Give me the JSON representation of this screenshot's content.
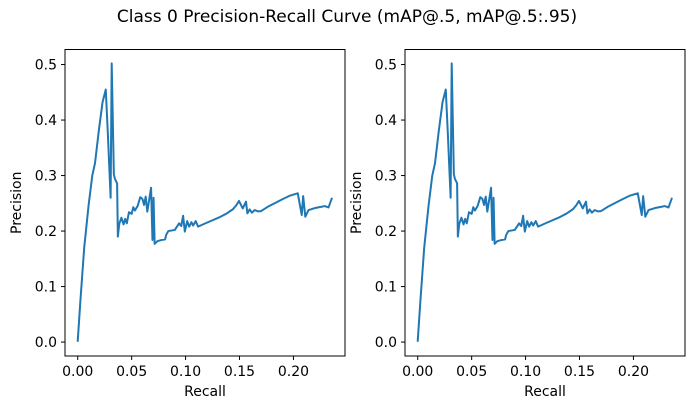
{
  "figure": {
    "suptitle": "Class 0 Precision-Recall Curve (mAP@.5, mAP@.5:.95)",
    "background": "#ffffff"
  },
  "chart_data": [
    {
      "type": "line",
      "subplot": "left (mAP@.5)",
      "xlabel": "Recall",
      "ylabel": "Precision",
      "xlim": [
        -0.0118,
        0.2478
      ],
      "ylim": [
        -0.0251,
        0.5271
      ],
      "x_tick_values": [
        0.0,
        0.05,
        0.1,
        0.15,
        0.2
      ],
      "x_tick_labels": [
        "0.00",
        "0.05",
        "0.10",
        "0.15",
        "0.20"
      ],
      "y_tick_values": [
        0.0,
        0.1,
        0.2,
        0.3,
        0.4,
        0.5
      ],
      "y_tick_labels": [
        "0.0",
        "0.1",
        "0.2",
        "0.3",
        "0.4",
        "0.5"
      ],
      "grid": false,
      "legend": null,
      "line_color": "#1f77b4",
      "series": [
        {
          "name": "precision-recall-curve",
          "points": [
            [
              0.0,
              0.002
            ],
            [
              0.0025,
              0.075
            ],
            [
              0.006,
              0.17
            ],
            [
              0.01,
              0.245
            ],
            [
              0.0135,
              0.3
            ],
            [
              0.016,
              0.322
            ],
            [
              0.0195,
              0.38
            ],
            [
              0.023,
              0.432
            ],
            [
              0.026,
              0.455
            ],
            [
              0.028,
              0.372
            ],
            [
              0.0305,
              0.26
            ],
            [
              0.0315,
              0.502
            ],
            [
              0.0335,
              0.302
            ],
            [
              0.0345,
              0.294
            ],
            [
              0.0365,
              0.286
            ],
            [
              0.0372,
              0.19
            ],
            [
              0.0385,
              0.213
            ],
            [
              0.0405,
              0.224
            ],
            [
              0.0425,
              0.212
            ],
            [
              0.044,
              0.222
            ],
            [
              0.0455,
              0.214
            ],
            [
              0.0475,
              0.234
            ],
            [
              0.05,
              0.231
            ],
            [
              0.0515,
              0.243
            ],
            [
              0.053,
              0.237
            ],
            [
              0.0555,
              0.245
            ],
            [
              0.058,
              0.261
            ],
            [
              0.06,
              0.258
            ],
            [
              0.0615,
              0.247
            ],
            [
              0.063,
              0.262
            ],
            [
              0.0645,
              0.235
            ],
            [
              0.068,
              0.278
            ],
            [
              0.0693,
              0.184
            ],
            [
              0.0703,
              0.26
            ],
            [
              0.0713,
              0.177
            ],
            [
              0.074,
              0.182
            ],
            [
              0.078,
              0.184
            ],
            [
              0.081,
              0.185
            ],
            [
              0.082,
              0.193
            ],
            [
              0.084,
              0.2
            ],
            [
              0.09,
              0.202
            ],
            [
              0.094,
              0.214
            ],
            [
              0.096,
              0.209
            ],
            [
              0.0977,
              0.2275
            ],
            [
              0.0993,
              0.199
            ],
            [
              0.1015,
              0.218
            ],
            [
              0.1033,
              0.208
            ],
            [
              0.1054,
              0.216
            ],
            [
              0.107,
              0.21
            ],
            [
              0.1094,
              0.218
            ],
            [
              0.1116,
              0.208
            ],
            [
              0.118,
              0.2136
            ],
            [
              0.125,
              0.2195
            ],
            [
              0.131,
              0.2245
            ],
            [
              0.138,
              0.2315
            ],
            [
              0.144,
              0.2395
            ],
            [
              0.147,
              0.2465
            ],
            [
              0.1495,
              0.2543
            ],
            [
              0.153,
              0.2408
            ],
            [
              0.156,
              0.2529
            ],
            [
              0.1573,
              0.2318
            ],
            [
              0.1594,
              0.239
            ],
            [
              0.1615,
              0.2331
            ],
            [
              0.164,
              0.2378
            ],
            [
              0.167,
              0.2355
            ],
            [
              0.17,
              0.236
            ],
            [
              0.176,
              0.2435
            ],
            [
              0.183,
              0.2505
            ],
            [
              0.19,
              0.2575
            ],
            [
              0.197,
              0.264
            ],
            [
              0.204,
              0.268
            ],
            [
              0.2077,
              0.2288
            ],
            [
              0.209,
              0.263
            ],
            [
              0.211,
              0.2258
            ],
            [
              0.214,
              0.2378
            ],
            [
              0.22,
              0.2415
            ],
            [
              0.2255,
              0.2435
            ],
            [
              0.229,
              0.245
            ],
            [
              0.2325,
              0.2425
            ],
            [
              0.2355,
              0.2585
            ]
          ]
        }
      ]
    },
    {
      "type": "line",
      "subplot": "right (mAP@.5:.95)",
      "xlabel": "Recall",
      "ylabel": "Precision",
      "xlim": [
        -0.0118,
        0.2478
      ],
      "ylim": [
        -0.0251,
        0.5271
      ],
      "x_tick_values": [
        0.0,
        0.05,
        0.1,
        0.15,
        0.2
      ],
      "x_tick_labels": [
        "0.00",
        "0.05",
        "0.10",
        "0.15",
        "0.20"
      ],
      "y_tick_values": [
        0.0,
        0.1,
        0.2,
        0.3,
        0.4,
        0.5
      ],
      "y_tick_labels": [
        "0.0",
        "0.1",
        "0.2",
        "0.3",
        "0.4",
        "0.5"
      ],
      "grid": false,
      "legend": null,
      "line_color": "#1f77b4",
      "series": [
        {
          "name": "precision-recall-curve",
          "points": [
            [
              0.0,
              0.002
            ],
            [
              0.0025,
              0.075
            ],
            [
              0.006,
              0.17
            ],
            [
              0.01,
              0.245
            ],
            [
              0.0135,
              0.3
            ],
            [
              0.016,
              0.322
            ],
            [
              0.0195,
              0.38
            ],
            [
              0.023,
              0.432
            ],
            [
              0.026,
              0.455
            ],
            [
              0.028,
              0.372
            ],
            [
              0.0305,
              0.26
            ],
            [
              0.0315,
              0.502
            ],
            [
              0.0335,
              0.302
            ],
            [
              0.0345,
              0.294
            ],
            [
              0.0365,
              0.286
            ],
            [
              0.0372,
              0.19
            ],
            [
              0.0385,
              0.213
            ],
            [
              0.0405,
              0.224
            ],
            [
              0.0425,
              0.212
            ],
            [
              0.044,
              0.222
            ],
            [
              0.0455,
              0.214
            ],
            [
              0.0475,
              0.234
            ],
            [
              0.05,
              0.231
            ],
            [
              0.0515,
              0.243
            ],
            [
              0.053,
              0.237
            ],
            [
              0.0555,
              0.245
            ],
            [
              0.058,
              0.261
            ],
            [
              0.06,
              0.258
            ],
            [
              0.0615,
              0.247
            ],
            [
              0.063,
              0.262
            ],
            [
              0.0645,
              0.235
            ],
            [
              0.068,
              0.278
            ],
            [
              0.0693,
              0.184
            ],
            [
              0.0703,
              0.26
            ],
            [
              0.0713,
              0.177
            ],
            [
              0.074,
              0.182
            ],
            [
              0.078,
              0.184
            ],
            [
              0.081,
              0.185
            ],
            [
              0.082,
              0.193
            ],
            [
              0.084,
              0.2
            ],
            [
              0.09,
              0.202
            ],
            [
              0.094,
              0.214
            ],
            [
              0.096,
              0.209
            ],
            [
              0.0977,
              0.2275
            ],
            [
              0.0993,
              0.199
            ],
            [
              0.1015,
              0.218
            ],
            [
              0.1033,
              0.208
            ],
            [
              0.1054,
              0.216
            ],
            [
              0.107,
              0.21
            ],
            [
              0.1094,
              0.218
            ],
            [
              0.1116,
              0.208
            ],
            [
              0.118,
              0.2136
            ],
            [
              0.125,
              0.2195
            ],
            [
              0.131,
              0.2245
            ],
            [
              0.138,
              0.2315
            ],
            [
              0.144,
              0.2395
            ],
            [
              0.147,
              0.2465
            ],
            [
              0.1495,
              0.2543
            ],
            [
              0.153,
              0.2408
            ],
            [
              0.156,
              0.2529
            ],
            [
              0.1573,
              0.2318
            ],
            [
              0.1594,
              0.239
            ],
            [
              0.1615,
              0.2331
            ],
            [
              0.164,
              0.2378
            ],
            [
              0.167,
              0.2355
            ],
            [
              0.17,
              0.236
            ],
            [
              0.176,
              0.2435
            ],
            [
              0.183,
              0.2505
            ],
            [
              0.19,
              0.2575
            ],
            [
              0.197,
              0.264
            ],
            [
              0.204,
              0.268
            ],
            [
              0.2077,
              0.2288
            ],
            [
              0.209,
              0.263
            ],
            [
              0.211,
              0.2258
            ],
            [
              0.214,
              0.2378
            ],
            [
              0.22,
              0.2415
            ],
            [
              0.2255,
              0.2435
            ],
            [
              0.229,
              0.245
            ],
            [
              0.2325,
              0.2425
            ],
            [
              0.2355,
              0.2585
            ]
          ]
        }
      ]
    }
  ]
}
